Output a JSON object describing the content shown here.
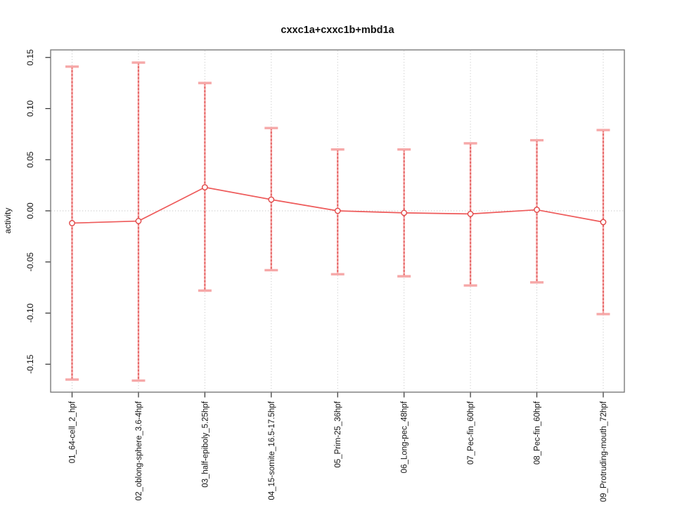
{
  "chart_data": {
    "type": "line",
    "title": "cxxc1a+cxxc1b+mbd1a",
    "xlabel": "",
    "ylabel": "activity",
    "categories": [
      "01_64-cell_2_hpf",
      "02_oblong-sphere_3.6-4hpf",
      "03_half-epiboly_5.25hpf",
      "04_15-somite_16.5-17.5hpf",
      "05_Prim-25_36hpf",
      "06_Long-pec_48hpf",
      "07_Pec-fin_60hpf",
      "08_Pec-fin_60hpf",
      "09_Protruding-mouth_72hpf"
    ],
    "series": [
      {
        "name": "activity",
        "values": [
          -0.012,
          -0.01,
          0.023,
          0.011,
          0.0,
          -0.002,
          -0.003,
          0.001,
          -0.011
        ],
        "error_high": [
          0.141,
          0.145,
          0.125,
          0.081,
          0.06,
          0.06,
          0.066,
          0.069,
          0.079
        ],
        "error_low": [
          -0.165,
          -0.166,
          -0.078,
          -0.058,
          -0.062,
          -0.064,
          -0.073,
          -0.07,
          -0.101
        ]
      }
    ],
    "yticks": [
      -0.15,
      -0.1,
      -0.05,
      0.0,
      0.05,
      0.1,
      0.15
    ],
    "ylim": [
      -0.175,
      0.158
    ],
    "grid": {
      "vertical_dotted_per_category": true,
      "zero_line_dotted": true
    },
    "legend_position": "none",
    "marker": "open-circle",
    "colors": {
      "line": "#ee5a5a",
      "point_stroke": "#e04747",
      "errorbar": "#f6a8a8",
      "errorbar_dash": "#e35b5b",
      "grid": "#cccccc",
      "zero_line": "#c4c4c4",
      "box": "#7a7a7a",
      "tick": "#2f2f2f"
    }
  }
}
